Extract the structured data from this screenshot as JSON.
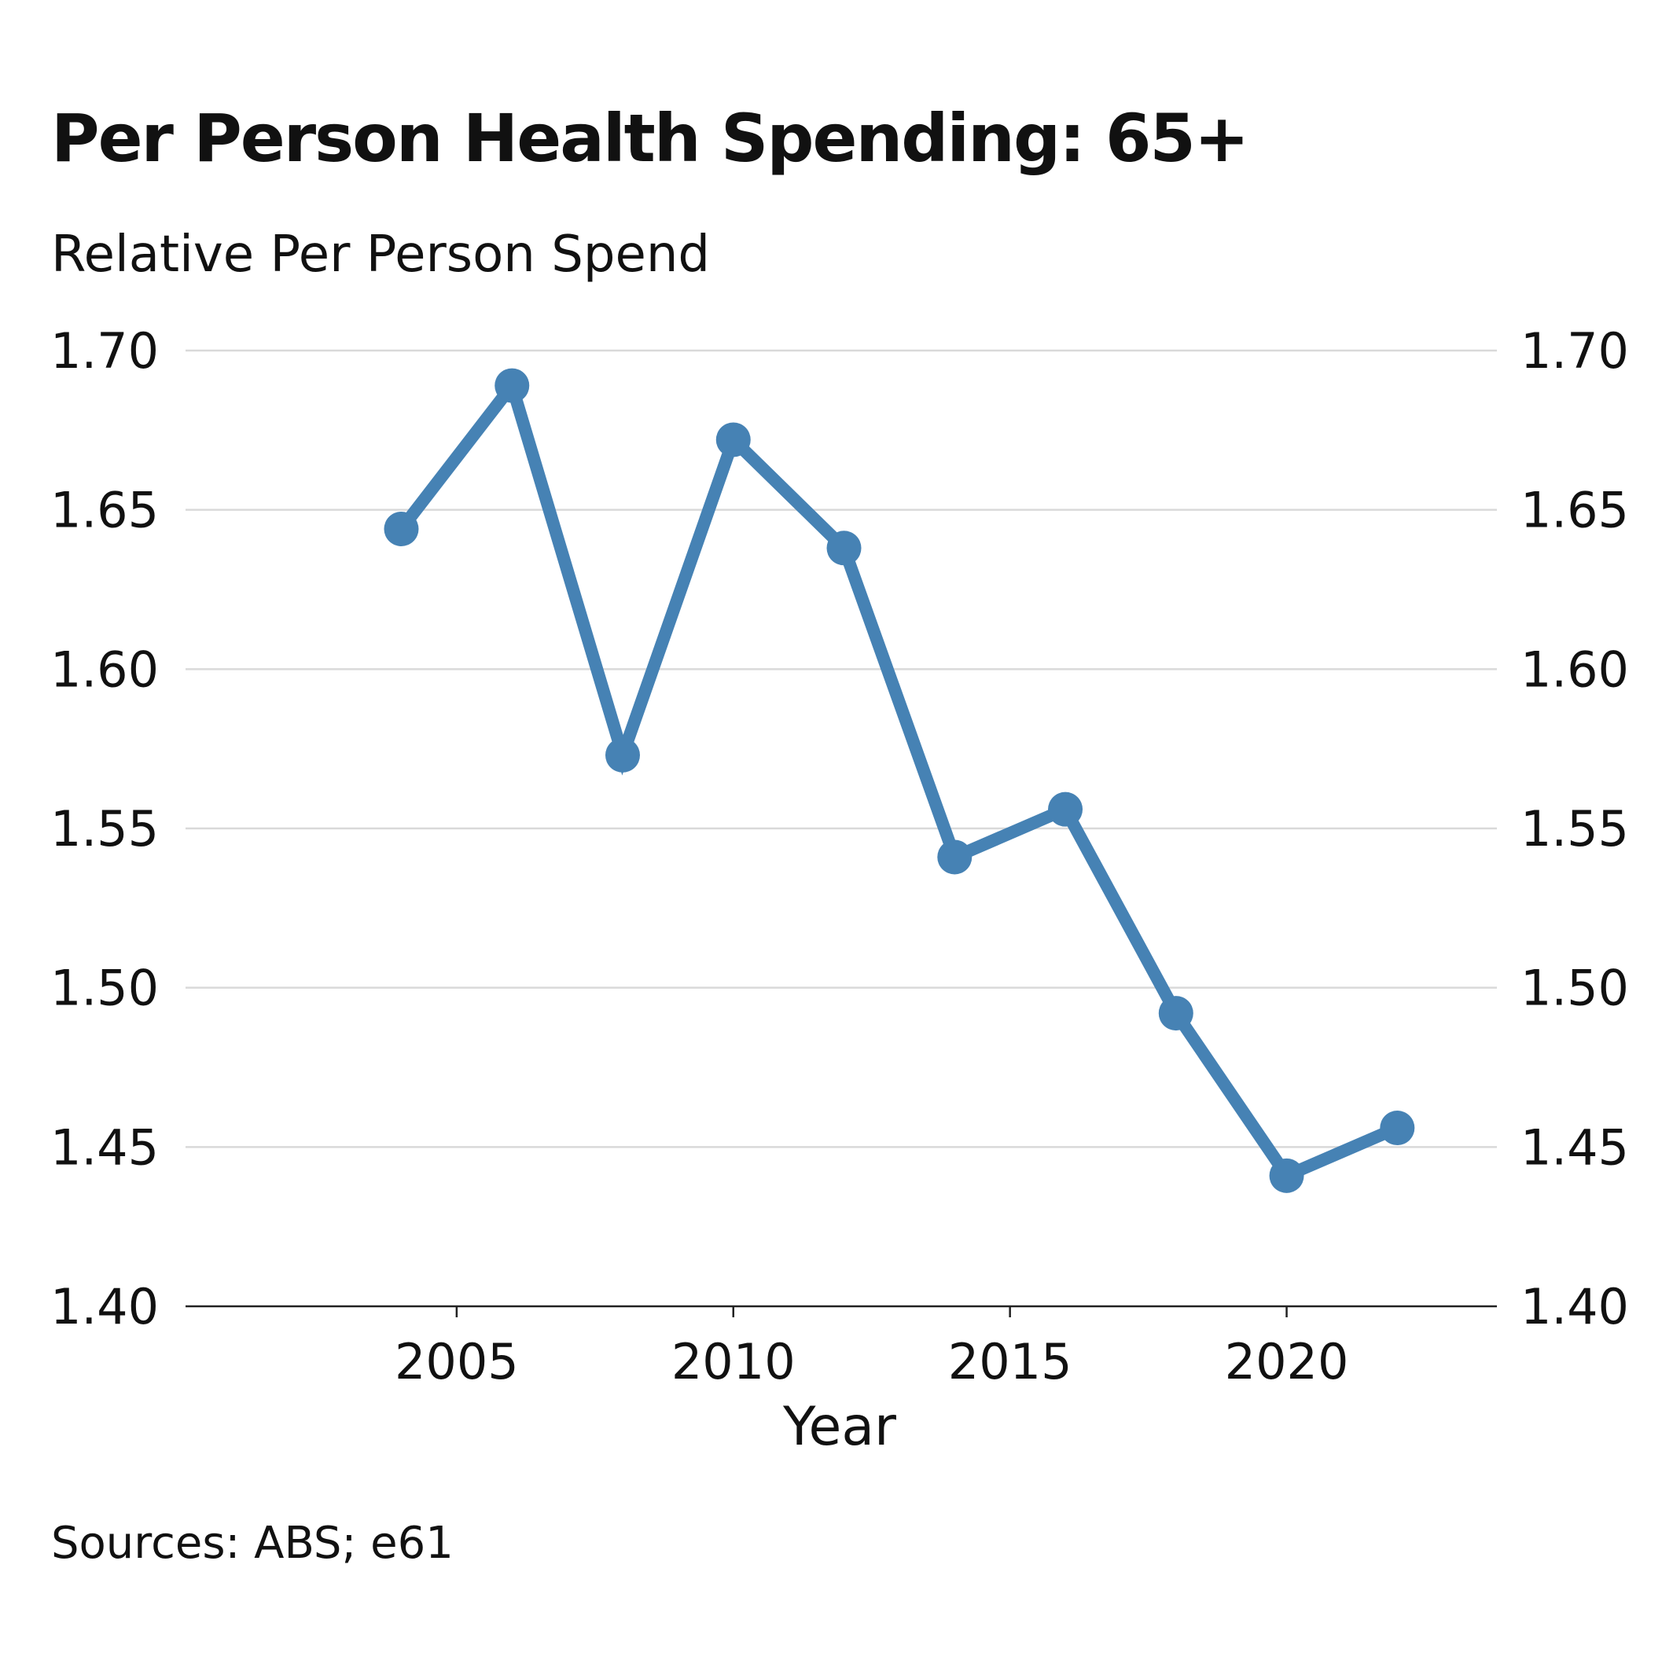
{
  "chart_data": {
    "type": "line",
    "title": "Per Person Health Spending: 65+",
    "subtitle": "Relative Per Person Spend",
    "xlabel": "Year",
    "ylabel": "",
    "source": "Sources: ABS; e61",
    "x": [
      2004,
      2006,
      2008,
      2010,
      2012,
      2014,
      2016,
      2018,
      2020,
      2022
    ],
    "series": [
      {
        "values": [
          1.644,
          1.689,
          1.573,
          1.672,
          1.638,
          1.541,
          1.556,
          1.492,
          1.441,
          1.456
        ],
        "color": "#4682b4"
      }
    ],
    "xlim": [
      2000.1,
      2023.8
    ],
    "ylim": [
      1.4,
      1.7
    ],
    "x_ticks": [
      2005,
      2010,
      2015,
      2020
    ],
    "x_tick_labels": [
      "2005",
      "2010",
      "2015",
      "2020"
    ],
    "y_ticks": [
      1.4,
      1.45,
      1.5,
      1.55,
      1.6,
      1.65,
      1.7
    ],
    "y_tick_labels": [
      "1.40",
      "1.45",
      "1.50",
      "1.55",
      "1.60",
      "1.65",
      "1.70"
    ],
    "y_axis_right": true,
    "grid": "horizontal",
    "grid_color": "#d9d9d9",
    "axis_color": "#222222",
    "legend": "none"
  }
}
